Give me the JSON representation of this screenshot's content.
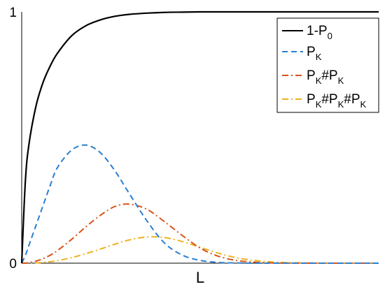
{
  "chart_data": {
    "type": "line",
    "title": "",
    "xlabel": "L",
    "ylabel": "",
    "xlim": [
      0,
      100
    ],
    "ylim": [
      0,
      1
    ],
    "y_ticks": [
      "0",
      "1"
    ],
    "grid": false,
    "legend_placement": "top-right",
    "x": [
      0,
      1,
      2,
      4,
      6,
      8,
      10,
      14,
      18,
      22,
      26,
      30,
      35,
      40,
      45,
      50,
      55,
      60,
      65,
      70,
      75,
      80,
      85,
      90,
      95,
      100
    ],
    "series": [
      {
        "name": "1-P_0",
        "name_main": "1-P",
        "name_sub": [
          "0"
        ],
        "color": "#000000",
        "style": "solid",
        "values": [
          0.0,
          0.32,
          0.47,
          0.625,
          0.72,
          0.785,
          0.835,
          0.905,
          0.945,
          0.968,
          0.982,
          0.99,
          0.995,
          0.998,
          0.999,
          1.0,
          1.0,
          1.0,
          1.0,
          1.0,
          1.0,
          1.0,
          1.0,
          1.0,
          1.0,
          1.0
        ]
      },
      {
        "name": "P_K",
        "name_main": "P",
        "name_sub": [
          "K"
        ],
        "color": "#2a7fd1",
        "style": "dashed",
        "values": [
          0.0,
          0.03,
          0.07,
          0.15,
          0.23,
          0.31,
          0.38,
          0.45,
          0.47,
          0.44,
          0.37,
          0.28,
          0.17,
          0.08,
          0.032,
          0.011,
          0.003,
          0.001,
          0.0,
          0.0,
          0.0,
          0.0,
          0.0,
          0.0,
          0.0,
          0.0
        ]
      },
      {
        "name": "P_K#P_K",
        "name_main": "P",
        "name_sub": [
          "K",
          "K"
        ],
        "name_sep": "#",
        "color": "#d95319",
        "style": "dashdot",
        "values": [
          0.0,
          0.0,
          0.002,
          0.008,
          0.018,
          0.032,
          0.05,
          0.095,
          0.145,
          0.19,
          0.225,
          0.235,
          0.215,
          0.165,
          0.11,
          0.06,
          0.028,
          0.011,
          0.004,
          0.001,
          0.0,
          0.0,
          0.0,
          0.0,
          0.0,
          0.0
        ]
      },
      {
        "name": "P_K#P_K#P_K",
        "name_main": "P",
        "name_sub": [
          "K",
          "K",
          "K"
        ],
        "name_sep": "#",
        "color": "#edb120",
        "style": "dashdot",
        "values": [
          0.0,
          0.0,
          0.0,
          0.001,
          0.003,
          0.006,
          0.01,
          0.022,
          0.038,
          0.056,
          0.075,
          0.092,
          0.104,
          0.102,
          0.086,
          0.063,
          0.04,
          0.022,
          0.011,
          0.005,
          0.002,
          0.001,
          0.0,
          0.0,
          0.0,
          0.0
        ]
      }
    ]
  }
}
